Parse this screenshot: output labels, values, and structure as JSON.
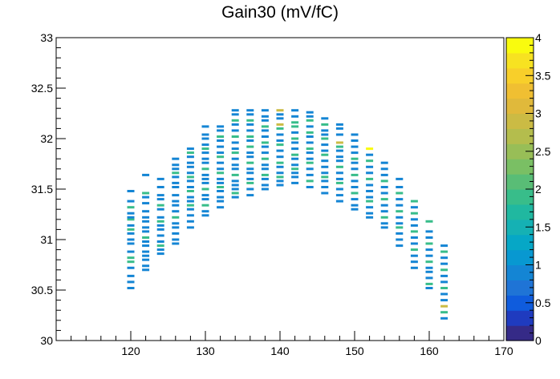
{
  "chart_data": {
    "type": "heatmap",
    "title": "Gain30 (mV/fC)",
    "xlabel": "",
    "ylabel": "",
    "xlim": [
      110,
      170
    ],
    "ylim": [
      30,
      33
    ],
    "zlim": [
      0,
      4
    ],
    "x_ticks": [
      "120",
      "130",
      "140",
      "150",
      "160",
      "170"
    ],
    "y_ticks": [
      "30",
      "30.5",
      "31",
      "31.5",
      "32",
      "32.5",
      "33"
    ],
    "z_ticks": [
      "0",
      "0.5",
      "1",
      "1.5",
      "2",
      "2.5",
      "3",
      "3.5",
      "4"
    ],
    "colormap": [
      "#352a87",
      "#1f3bbf",
      "#0f5cdd",
      "#1f74d6",
      "#1485d4",
      "#0898d1",
      "#06a7c6",
      "#15b1b4",
      "#20b8a0",
      "#38bd8a",
      "#59bd76",
      "#7abf64",
      "#98be57",
      "#b4bd4d",
      "#cbbb44",
      "#e0b93b",
      "#f0bf32",
      "#f8cf2a",
      "#f7e221",
      "#f9fb0e"
    ],
    "cells": [
      {
        "x": 120,
        "y": [
          30.52,
          30.58,
          30.64,
          30.72,
          30.78,
          30.82,
          30.88,
          30.96,
          31.0,
          31.06,
          31.1,
          31.14,
          31.2,
          31.22,
          31.26,
          31.32,
          31.38,
          31.48
        ],
        "z": [
          1,
          1,
          1,
          1,
          2,
          2,
          1,
          1,
          1,
          1,
          2,
          1,
          2,
          1,
          1,
          2,
          1,
          1
        ]
      },
      {
        "x": 122,
        "y": [
          30.7,
          30.74,
          30.8,
          30.84,
          30.88,
          30.94,
          30.98,
          31.02,
          31.08,
          31.12,
          31.18,
          31.22,
          31.28,
          31.36,
          31.42,
          31.46,
          31.64
        ],
        "z": [
          1,
          1,
          1,
          1,
          1,
          1,
          1,
          2,
          1,
          1,
          1,
          1,
          1,
          1,
          1,
          2,
          1
        ]
      },
      {
        "x": 124,
        "y": [
          30.86,
          30.9,
          30.94,
          30.98,
          31.04,
          31.1,
          31.14,
          31.18,
          31.22,
          31.3,
          31.34,
          31.4,
          31.44,
          31.52,
          31.6
        ],
        "z": [
          1,
          1,
          2,
          1,
          1,
          1,
          1,
          2,
          1,
          1,
          2,
          1,
          1,
          1,
          1
        ]
      },
      {
        "x": 126,
        "y": [
          30.96,
          31.0,
          31.06,
          31.12,
          31.16,
          31.22,
          31.28,
          31.34,
          31.38,
          31.44,
          31.52,
          31.56,
          31.62,
          31.66,
          31.7,
          31.74,
          31.8
        ],
        "z": [
          1,
          1,
          1,
          1,
          1,
          2,
          1,
          1,
          1,
          1,
          1,
          1,
          1,
          2,
          1,
          1,
          1
        ]
      },
      {
        "x": 128,
        "y": [
          31.12,
          31.18,
          31.24,
          31.3,
          31.34,
          31.38,
          31.42,
          31.48,
          31.52,
          31.58,
          31.62,
          31.66,
          31.72,
          31.76,
          31.82,
          31.86,
          31.9
        ],
        "z": [
          1,
          1,
          1,
          1,
          2,
          1,
          1,
          2,
          1,
          1,
          2,
          1,
          1,
          1,
          1,
          2,
          1
        ]
      },
      {
        "x": 130,
        "y": [
          31.24,
          31.28,
          31.34,
          31.4,
          31.44,
          31.5,
          31.56,
          31.6,
          31.64,
          31.7,
          31.76,
          31.8,
          31.86,
          31.9,
          31.94,
          32.0,
          32.04,
          32.12
        ],
        "z": [
          1,
          1,
          2,
          1,
          1,
          2,
          1,
          1,
          1,
          2,
          1,
          1,
          1,
          2,
          1,
          1,
          1,
          1
        ]
      },
      {
        "x": 132,
        "y": [
          31.32,
          31.38,
          31.42,
          31.48,
          31.52,
          31.56,
          31.6,
          31.66,
          31.7,
          31.76,
          31.82,
          31.86,
          31.92,
          31.98,
          32.02,
          32.08,
          32.12
        ],
        "z": [
          1,
          1,
          1,
          1,
          2,
          1,
          1,
          2,
          1,
          1,
          2,
          1,
          1,
          1,
          2,
          1,
          1
        ]
      },
      {
        "x": 134,
        "y": [
          31.42,
          31.46,
          31.5,
          31.54,
          31.58,
          31.64,
          31.7,
          31.74,
          31.8,
          31.86,
          31.9,
          31.96,
          32.02,
          32.08,
          32.14,
          32.18,
          32.24,
          32.28
        ],
        "z": [
          1,
          2,
          1,
          1,
          1,
          2,
          1,
          1,
          1,
          2,
          1,
          1,
          2,
          1,
          1,
          2,
          1,
          1
        ]
      },
      {
        "x": 136,
        "y": [
          31.44,
          31.5,
          31.56,
          31.6,
          31.66,
          31.7,
          31.76,
          31.82,
          31.86,
          31.92,
          31.98,
          32.02,
          32.08,
          32.14,
          32.18,
          32.24,
          32.28
        ],
        "z": [
          1,
          1,
          2,
          1,
          1,
          1,
          2,
          1,
          1,
          2,
          1,
          2,
          1,
          1,
          2,
          1,
          1
        ]
      },
      {
        "x": 138,
        "y": [
          31.5,
          31.54,
          31.6,
          31.64,
          31.7,
          31.74,
          31.8,
          31.86,
          31.92,
          31.96,
          32.02,
          32.08,
          32.12,
          32.18,
          32.22,
          32.28
        ],
        "z": [
          1,
          1,
          1,
          2,
          1,
          1,
          2,
          1,
          1,
          2,
          1,
          1,
          2,
          1,
          1,
          1
        ]
      },
      {
        "x": 140,
        "y": [
          31.54,
          31.58,
          31.62,
          31.66,
          31.72,
          31.76,
          31.82,
          31.88,
          31.94,
          31.98,
          32.04,
          32.1,
          32.14,
          32.2,
          32.24,
          32.28
        ],
        "z": [
          1,
          1,
          2,
          1,
          1,
          2,
          1,
          1,
          2,
          1,
          1,
          2,
          3,
          1,
          1,
          3
        ]
      },
      {
        "x": 142,
        "y": [
          31.56,
          31.62,
          31.66,
          31.7,
          31.74,
          31.8,
          31.84,
          31.9,
          31.96,
          32.0,
          32.06,
          32.12,
          32.16,
          32.22,
          32.28
        ],
        "z": [
          1,
          1,
          1,
          2,
          1,
          1,
          2,
          1,
          1,
          2,
          1,
          2,
          2,
          1,
          1
        ]
      },
      {
        "x": 144,
        "y": [
          31.52,
          31.58,
          31.64,
          31.7,
          31.76,
          31.8,
          31.86,
          31.9,
          31.96,
          32.02,
          32.06,
          32.12,
          32.18,
          32.22,
          32.26
        ],
        "z": [
          1,
          2,
          1,
          1,
          2,
          1,
          1,
          2,
          1,
          1,
          2,
          1,
          2,
          1,
          1
        ]
      },
      {
        "x": 146,
        "y": [
          31.46,
          31.52,
          31.58,
          31.62,
          31.66,
          31.72,
          31.78,
          31.84,
          31.88,
          31.94,
          32.0,
          32.04,
          32.08,
          32.14,
          32.2
        ],
        "z": [
          1,
          1,
          1,
          2,
          1,
          1,
          1,
          2,
          1,
          1,
          2,
          1,
          1,
          2,
          1
        ]
      },
      {
        "x": 148,
        "y": [
          31.38,
          31.44,
          31.5,
          31.56,
          31.6,
          31.66,
          31.72,
          31.78,
          31.82,
          31.88,
          31.92,
          31.96,
          32.04,
          32.1,
          32.14
        ],
        "z": [
          1,
          1,
          1,
          2,
          1,
          1,
          2,
          1,
          1,
          1,
          2,
          3,
          1,
          1,
          1
        ]
      },
      {
        "x": 150,
        "y": [
          31.3,
          31.34,
          31.4,
          31.46,
          31.52,
          31.58,
          31.64,
          31.7,
          31.76,
          31.8,
          31.86,
          31.92,
          31.98,
          32.04
        ],
        "z": [
          1,
          1,
          1,
          2,
          1,
          1,
          2,
          1,
          1,
          2,
          1,
          1,
          1,
          1
        ]
      },
      {
        "x": 152,
        "y": [
          31.22,
          31.26,
          31.32,
          31.38,
          31.42,
          31.48,
          31.54,
          31.6,
          31.66,
          31.72,
          31.78,
          31.84,
          31.9
        ],
        "z": [
          1,
          1,
          1,
          2,
          1,
          1,
          1,
          2,
          1,
          1,
          2,
          1,
          4
        ]
      },
      {
        "x": 154,
        "y": [
          31.12,
          31.16,
          31.22,
          31.28,
          31.34,
          31.4,
          31.46,
          31.52,
          31.58,
          31.64,
          31.7,
          31.76
        ],
        "z": [
          1,
          1,
          2,
          1,
          1,
          2,
          1,
          1,
          2,
          1,
          1,
          1
        ]
      },
      {
        "x": 156,
        "y": [
          30.94,
          31.0,
          31.06,
          31.12,
          31.16,
          31.22,
          31.28,
          31.34,
          31.4,
          31.46,
          31.52,
          31.6
        ],
        "z": [
          1,
          1,
          1,
          2,
          1,
          1,
          2,
          1,
          1,
          2,
          1,
          1
        ]
      },
      {
        "x": 158,
        "y": [
          30.72,
          30.78,
          30.84,
          30.9,
          30.96,
          31.02,
          31.08,
          31.14,
          31.2,
          31.26,
          31.32,
          31.38
        ],
        "z": [
          1,
          1,
          1,
          2,
          1,
          1,
          2,
          1,
          1,
          2,
          1,
          2
        ]
      },
      {
        "x": 160,
        "y": [
          30.52,
          30.56,
          30.62,
          30.68,
          30.72,
          30.78,
          30.84,
          30.9,
          30.96,
          31.02,
          31.08,
          31.18
        ],
        "z": [
          1,
          2,
          1,
          1,
          1,
          2,
          1,
          1,
          2,
          1,
          1,
          2
        ]
      },
      {
        "x": 162,
        "y": [
          30.22,
          30.28,
          30.34,
          30.4,
          30.46,
          30.52,
          30.58,
          30.64,
          30.7,
          30.76,
          30.82,
          30.88,
          30.94
        ],
        "z": [
          1,
          2,
          3,
          1,
          1,
          2,
          1,
          1,
          2,
          1,
          1,
          2,
          1
        ]
      }
    ]
  }
}
